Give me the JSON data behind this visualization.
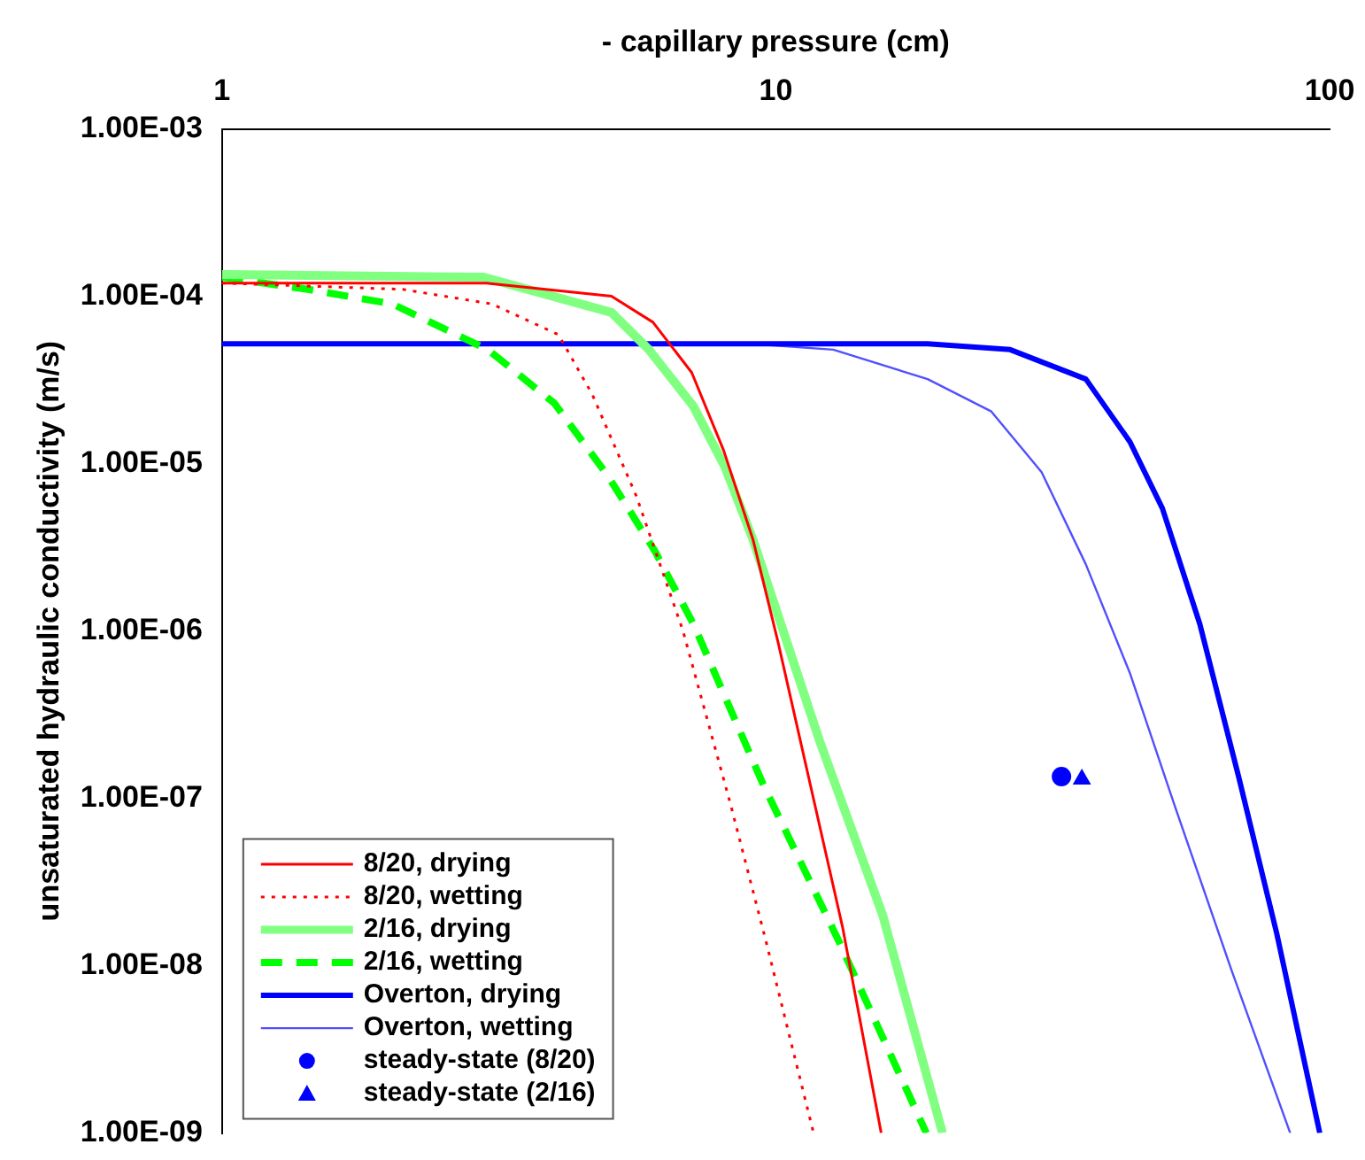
{
  "chart_data": {
    "type": "line",
    "xlabel": "- capillary pressure (cm)",
    "ylabel": "unsaturated hydraulic conductivity (m/s)",
    "log": "xy",
    "xlim": [
      1,
      100
    ],
    "xticks": [
      1,
      10,
      100
    ],
    "ylim": [
      1e-09,
      0.001
    ],
    "yticks": [
      {
        "value": 1e-09,
        "label": "1.00E-09"
      },
      {
        "value": 1e-08,
        "label": "1.00E-08"
      },
      {
        "value": 1e-07,
        "label": "1.00E-07"
      },
      {
        "value": 1e-06,
        "label": "1.00E-06"
      },
      {
        "value": 1e-05,
        "label": "1.00E-05"
      },
      {
        "value": 0.0001,
        "label": "1.00E-04"
      },
      {
        "value": 0.001,
        "label": "1.00E-03"
      }
    ],
    "grid": false,
    "legend": "bottom left",
    "series": [
      {
        "name": "8/20, drying",
        "type": "line",
        "line_style": "solid",
        "color": "#ff0000",
        "x": [
          1,
          3,
          5.05,
          6.0,
          7.05,
          8.05,
          9.1,
          10.1,
          13.2,
          15.5
        ],
        "values": [
          0.00012,
          0.00012,
          0.0001,
          7e-05,
          3.5e-05,
          1.2e-05,
          3.5e-06,
          8.5e-07,
          1.7e-08,
          1e-09
        ]
      },
      {
        "name": "8/20, wetting",
        "type": "line",
        "line_style": "dotted",
        "color": "#ff0000",
        "x": [
          1,
          2.12,
          3.07,
          4.05,
          4.66,
          5.6,
          6.8,
          8.3,
          9.6,
          11.7
        ],
        "values": [
          0.00012,
          0.00011,
          9e-05,
          5.9e-05,
          2.6e-05,
          6.4e-06,
          1e-06,
          9e-08,
          1.4e-08,
          1e-09
        ]
      },
      {
        "name": "2/16, drying",
        "type": "line",
        "line_style": "solid",
        "color": "#80ff80",
        "x": [
          1,
          2.97,
          5.05,
          5.9,
          7.1,
          8.1,
          9.1,
          12.0,
          15.6,
          20.0
        ],
        "values": [
          0.000135,
          0.00013,
          8e-05,
          4.8e-05,
          2.2e-05,
          9.5e-06,
          3.5e-06,
          2.2e-07,
          2e-08,
          1e-09
        ]
      },
      {
        "name": "2/16, wetting",
        "type": "line",
        "line_style": "dashed",
        "color": "#00ff00",
        "x": [
          1,
          1.43,
          2.03,
          2.38,
          3.02,
          3.98,
          4.97,
          6.05,
          7.1,
          9.5,
          13.0,
          18.7
        ],
        "values": [
          0.00013,
          0.00011,
          9e-05,
          7e-05,
          4.8e-05,
          2.3e-05,
          8.5e-06,
          3e-06,
          1.1e-06,
          1.2e-07,
          1.4e-08,
          1e-09
        ]
      },
      {
        "name": "Overton, drying",
        "type": "line",
        "line_style": "solid",
        "color": "#0000ff",
        "x": [
          1,
          18.8,
          26.5,
          36.3,
          43.6,
          49.9,
          58.3,
          68.5,
          80.3,
          96
        ],
        "values": [
          5.2e-05,
          5.2e-05,
          4.8e-05,
          3.2e-05,
          1.35e-05,
          5.4e-06,
          1.1e-06,
          1.35e-07,
          1.55e-08,
          1e-09
        ]
      },
      {
        "name": "Overton, wetting",
        "type": "line",
        "line_style": "solid",
        "color": "#5050ff",
        "x": [
          1,
          9.0,
          12.7,
          18.8,
          24.5,
          30.2,
          36.3,
          43.6,
          52.6,
          66.6,
          84.9
        ],
        "values": [
          5.2e-05,
          5.2e-05,
          4.8e-05,
          3.2e-05,
          2.05e-05,
          8.9e-06,
          2.5e-06,
          5.6e-07,
          8.9e-08,
          9.3e-09,
          1e-09
        ]
      },
      {
        "name": "steady-state (8/20)",
        "type": "scatter",
        "marker": "circle",
        "color": "#0000ff",
        "x": [
          32.8
        ],
        "values": [
          1.35e-07
        ]
      },
      {
        "name": "steady-state (2/16)",
        "type": "scatter",
        "marker": "triangle",
        "color": "#0000ff",
        "x": [
          35.7
        ],
        "values": [
          1.3e-07
        ]
      }
    ]
  }
}
